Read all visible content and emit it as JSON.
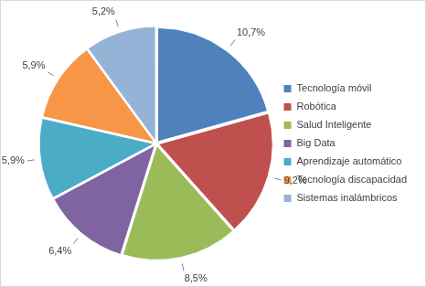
{
  "chart_data": {
    "type": "pie",
    "categories": [
      "Tecnología móvil",
      "Robótica",
      "Salud Inteligente",
      "Big Data",
      "Aprendizaje automático",
      "Tecnología discapacidad",
      "Sistemas inalámbricos"
    ],
    "values": [
      10.7,
      9.2,
      8.5,
      6.4,
      5.9,
      5.9,
      5.2
    ],
    "value_labels": [
      "10,7%",
      "9,2%",
      "8,5%",
      "6,4%",
      "5,9%",
      "5,9%",
      "5,2%"
    ],
    "colors": [
      "#4f81bd",
      "#c0504d",
      "#9bbb59",
      "#8064a2",
      "#4bacc6",
      "#f79646",
      "#95b3d7"
    ],
    "data_labels": true,
    "legend": "right"
  }
}
